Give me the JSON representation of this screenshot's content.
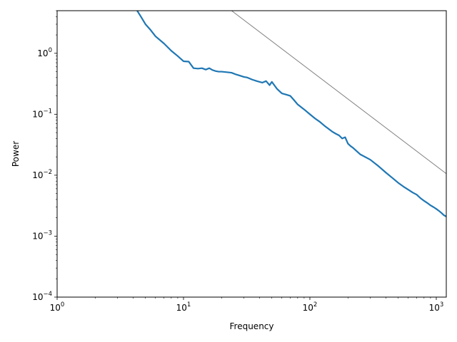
{
  "chart_data": {
    "type": "line",
    "title": "",
    "xlabel": "Frequency",
    "ylabel": "Power",
    "xscale": "log",
    "yscale": "log",
    "xlim": [
      1,
      1200
    ],
    "ylim": [
      0.0001,
      5
    ],
    "grid": false,
    "legend": "none",
    "x_tick_values": [
      1,
      10,
      100,
      1000
    ],
    "x_tick_labels": [
      {
        "base": "10",
        "exp": "0"
      },
      {
        "base": "10",
        "exp": "1"
      },
      {
        "base": "10",
        "exp": "2"
      },
      {
        "base": "10",
        "exp": "3"
      }
    ],
    "y_tick_values": [
      0.0001,
      0.001,
      0.01,
      0.1,
      1
    ],
    "y_tick_labels": [
      {
        "base": "10",
        "exp": "−4"
      },
      {
        "base": "10",
        "exp": "−3"
      },
      {
        "base": "10",
        "exp": "−2"
      },
      {
        "base": "10",
        "exp": "−1"
      },
      {
        "base": "10",
        "exp": "0"
      }
    ],
    "series": [
      {
        "color": "#1f77b4",
        "x": [
          4.3,
          4.6,
          5,
          5.5,
          6,
          7,
          8,
          9,
          10,
          11,
          12,
          13,
          14,
          15,
          16,
          17,
          18,
          19,
          20,
          22,
          24,
          26,
          28,
          30,
          32,
          35,
          38,
          40,
          42,
          45,
          48,
          50,
          55,
          60,
          65,
          70,
          75,
          80,
          90,
          100,
          110,
          120,
          130,
          140,
          150,
          160,
          170,
          180,
          190,
          200,
          210,
          220,
          250,
          300,
          350,
          400,
          450,
          500,
          550,
          600,
          650,
          700,
          750,
          800,
          850,
          900,
          950,
          1000,
          1050,
          1100,
          1150,
          1200
        ],
        "y": [
          5.0,
          4.0,
          3.0,
          2.4,
          1.9,
          1.45,
          1.1,
          0.9,
          0.74,
          0.73,
          0.57,
          0.56,
          0.57,
          0.54,
          0.57,
          0.53,
          0.51,
          0.5,
          0.5,
          0.49,
          0.48,
          0.45,
          0.43,
          0.41,
          0.4,
          0.37,
          0.35,
          0.34,
          0.33,
          0.35,
          0.3,
          0.34,
          0.26,
          0.22,
          0.21,
          0.2,
          0.17,
          0.145,
          0.12,
          0.1,
          0.085,
          0.075,
          0.065,
          0.058,
          0.052,
          0.048,
          0.045,
          0.04,
          0.042,
          0.033,
          0.03,
          0.028,
          0.022,
          0.018,
          0.014,
          0.011,
          0.009,
          0.0075,
          0.0065,
          0.0058,
          0.0052,
          0.0048,
          0.0042,
          0.0038,
          0.0035,
          0.0032,
          0.003,
          0.0028,
          0.0026,
          0.0024,
          0.0022,
          0.0021
        ]
      },
      {
        "color": "#808080",
        "x": [
          24,
          1200
        ],
        "y": [
          5.0,
          0.0106
        ]
      }
    ]
  }
}
